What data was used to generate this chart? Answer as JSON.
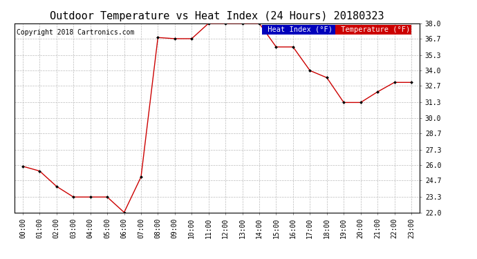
{
  "title": "Outdoor Temperature vs Heat Index (24 Hours) 20180323",
  "copyright": "Copyright 2018 Cartronics.com",
  "hours": [
    "00:00",
    "01:00",
    "02:00",
    "03:00",
    "04:00",
    "05:00",
    "06:00",
    "07:00",
    "08:00",
    "09:00",
    "10:00",
    "11:00",
    "12:00",
    "13:00",
    "14:00",
    "15:00",
    "16:00",
    "17:00",
    "18:00",
    "19:00",
    "20:00",
    "21:00",
    "22:00",
    "23:00"
  ],
  "temperature": [
    25.9,
    25.5,
    24.2,
    23.3,
    23.3,
    23.3,
    22.0,
    25.0,
    36.8,
    36.7,
    36.7,
    38.0,
    38.0,
    38.0,
    38.0,
    36.0,
    36.0,
    34.0,
    33.4,
    31.3,
    31.3,
    32.2,
    33.0,
    33.0
  ],
  "ylim": [
    22.0,
    38.0
  ],
  "yticks": [
    22.0,
    23.3,
    24.7,
    26.0,
    27.3,
    28.7,
    30.0,
    31.3,
    32.7,
    34.0,
    35.3,
    36.7,
    38.0
  ],
  "line_color": "#cc0000",
  "marker_color": "#000000",
  "title_fontsize": 11,
  "copyright_fontsize": 7,
  "legend_heat_bg": "#0000bb",
  "legend_temp_bg": "#cc0000",
  "legend_text_color": "#ffffff",
  "background_color": "#ffffff",
  "plot_bg_color": "#ffffff",
  "grid_color": "#bbbbbb",
  "tick_label_fontsize": 7
}
